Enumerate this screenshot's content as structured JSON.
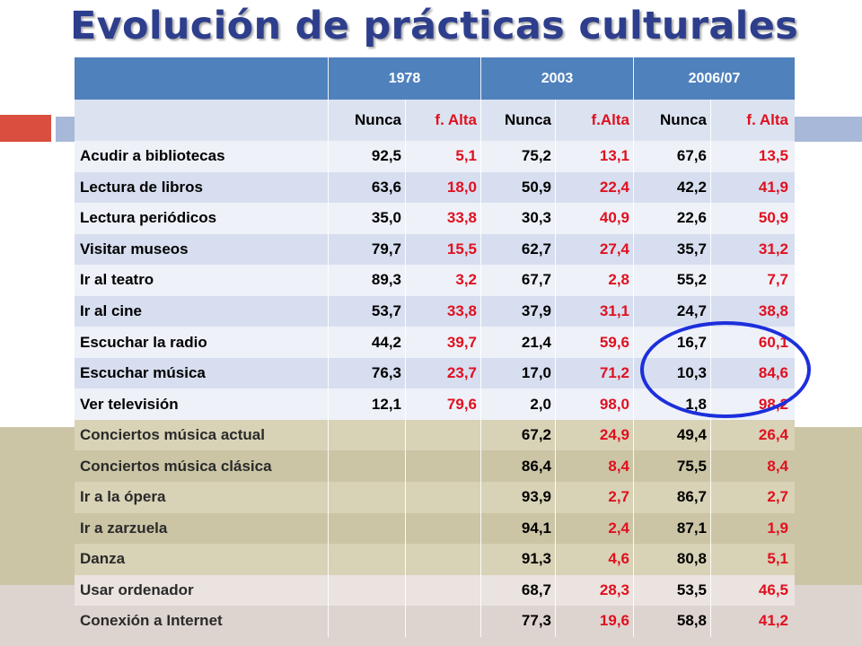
{
  "title": "Evolución de prácticas culturales",
  "years": [
    "1978",
    "2003",
    "2006/07"
  ],
  "subheaders": [
    "Nunca",
    "f. Alta",
    "Nunca",
    "f.Alta",
    "Nunca",
    "f. Alta"
  ],
  "rows": [
    {
      "label": "Acudir a bibliotecas",
      "values": [
        "92,5",
        "5,1",
        "75,2",
        "13,1",
        "67,6",
        "13,5"
      ]
    },
    {
      "label": "Lectura de libros",
      "values": [
        "63,6",
        "18,0",
        "50,9",
        "22,4",
        "42,2",
        "41,9"
      ]
    },
    {
      "label": "Lectura periódicos",
      "values": [
        "35,0",
        "33,8",
        "30,3",
        "40,9",
        "22,6",
        "50,9"
      ]
    },
    {
      "label": "Visitar museos",
      "values": [
        "79,7",
        "15,5",
        "62,7",
        "27,4",
        "35,7",
        "31,2"
      ]
    },
    {
      "label": "Ir al teatro",
      "values": [
        "89,3",
        "3,2",
        "67,7",
        "2,8",
        "55,2",
        "7,7"
      ]
    },
    {
      "label": "Ir al cine",
      "values": [
        "53,7",
        "33,8",
        "37,9",
        "31,1",
        "24,7",
        "38,8"
      ]
    },
    {
      "label": "Escuchar la radio",
      "values": [
        "44,2",
        "39,7",
        "21,4",
        "59,6",
        "16,7",
        "60,1"
      ]
    },
    {
      "label": "Escuchar música",
      "values": [
        "76,3",
        "23,7",
        "17,0",
        "71,2",
        "10,3",
        "84,6"
      ]
    },
    {
      "label": "Ver televisión",
      "values": [
        "12,1",
        "79,6",
        "2,0",
        "98,0",
        "1,8",
        "98,2"
      ]
    },
    {
      "label": "Conciertos música actual",
      "values": [
        "",
        "",
        "67,2",
        "24,9",
        "49,4",
        "26,4"
      ]
    },
    {
      "label": "Conciertos música clásica",
      "values": [
        "",
        "",
        "86,4",
        "8,4",
        "75,5",
        "8,4"
      ]
    },
    {
      "label": "Ir a la ópera",
      "values": [
        "",
        "",
        "93,9",
        "2,7",
        "86,7",
        "2,7"
      ]
    },
    {
      "label": "Ir a zarzuela",
      "values": [
        "",
        "",
        "94,1",
        "2,4",
        "87,1",
        "1,9"
      ]
    },
    {
      "label": "Danza",
      "values": [
        "",
        "",
        "91,3",
        "4,6",
        "80,8",
        "5,1"
      ]
    },
    {
      "label": "Usar ordenador",
      "values": [
        "",
        "",
        "68,7",
        "28,3",
        "53,5",
        "46,5"
      ]
    },
    {
      "label": "Conexión a Internet",
      "values": [
        "",
        "",
        "77,3",
        "19,6",
        "58,8",
        "41,2"
      ]
    }
  ],
  "colors": {
    "title": "#2d3e8c",
    "header": "#4f81bd",
    "highlight": "#e0101f",
    "circle": "#1c2fdc"
  }
}
